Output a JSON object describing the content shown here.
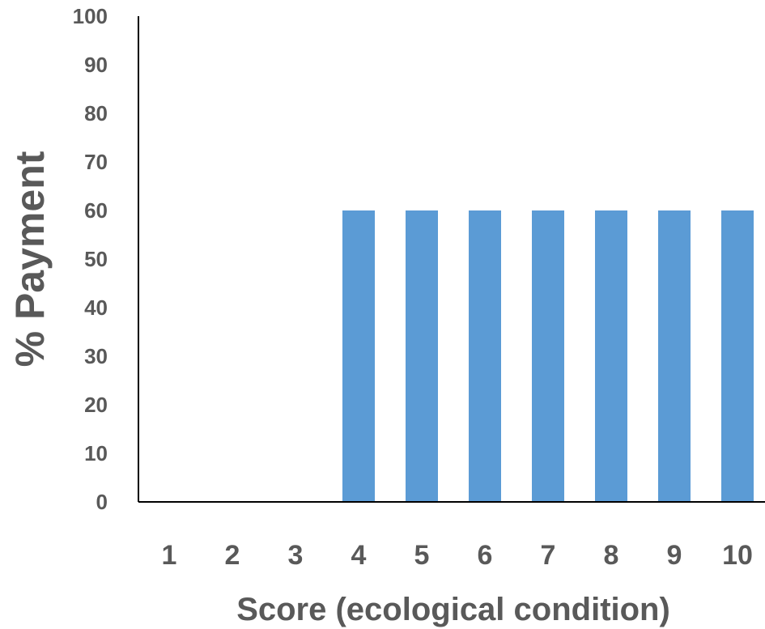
{
  "chart_data": {
    "type": "bar",
    "categories": [
      "1",
      "2",
      "3",
      "4",
      "5",
      "6",
      "7",
      "8",
      "9",
      "10"
    ],
    "values": [
      0,
      0,
      0,
      60,
      60,
      60,
      60,
      60,
      60,
      60
    ],
    "title": "",
    "xlabel": "Score (ecological condition)",
    "ylabel": "% Payment",
    "ylim": [
      0,
      100
    ],
    "yticks": [
      0,
      10,
      20,
      30,
      40,
      50,
      60,
      70,
      80,
      90,
      100
    ],
    "grid": false,
    "legend": "none",
    "bar_color": "#5B9BD5",
    "axis_color": "#000000",
    "label_color": "#595959"
  }
}
